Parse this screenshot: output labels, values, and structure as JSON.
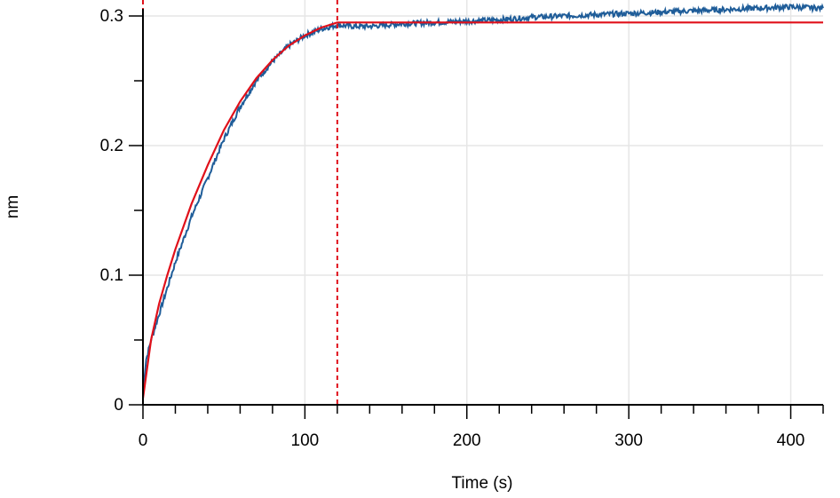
{
  "chart_data": {
    "type": "line",
    "title": "",
    "xlabel": "Time (s)",
    "ylabel": "nm",
    "xlim": [
      0,
      420
    ],
    "ylim": [
      0,
      0.3
    ],
    "x_ticks": [
      0,
      100,
      200,
      300,
      400
    ],
    "x_tick_labels": [
      "0",
      "100",
      "200",
      "300",
      "400"
    ],
    "x_minor_step": 20,
    "y_ticks": [
      0,
      0.1,
      0.2,
      0.3
    ],
    "y_tick_labels": [
      "0",
      "0.1",
      "0.2",
      "0.3"
    ],
    "y_minor_step": 0.05,
    "grid": true,
    "vlines": [
      0,
      120
    ],
    "colors": {
      "data": "#1f5d99",
      "fit": "#e0101a",
      "grid": "#e6e6e6",
      "vline": "#e0101a"
    },
    "series": [
      {
        "role": "measured",
        "x": [
          0,
          2,
          5,
          10,
          15,
          20,
          30,
          40,
          50,
          60,
          70,
          80,
          90,
          100,
          110,
          120,
          130,
          140,
          150,
          160,
          180,
          200,
          220,
          240,
          260,
          280,
          300,
          320,
          340,
          360,
          380,
          400,
          420
        ],
        "y": [
          0.01,
          0.035,
          0.05,
          0.07,
          0.09,
          0.11,
          0.145,
          0.175,
          0.205,
          0.23,
          0.25,
          0.265,
          0.277,
          0.285,
          0.29,
          0.293,
          0.292,
          0.292,
          0.293,
          0.294,
          0.295,
          0.296,
          0.297,
          0.299,
          0.3,
          0.301,
          0.302,
          0.303,
          0.304,
          0.305,
          0.306,
          0.307,
          0.306
        ]
      },
      {
        "role": "fit",
        "x": [
          0,
          5,
          10,
          15,
          20,
          30,
          40,
          50,
          60,
          70,
          80,
          90,
          100,
          110,
          120,
          420
        ],
        "y": [
          0.005,
          0.05,
          0.078,
          0.1,
          0.12,
          0.155,
          0.185,
          0.212,
          0.234,
          0.252,
          0.266,
          0.277,
          0.285,
          0.291,
          0.295,
          0.295
        ]
      }
    ]
  }
}
